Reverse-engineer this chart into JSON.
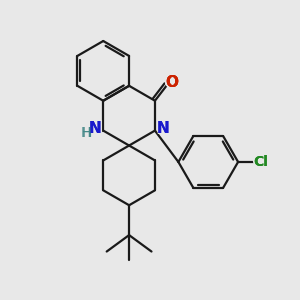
{
  "background_color": "#e8e8e8",
  "line_color": "#1a1a1a",
  "N_color": "#1a1acc",
  "O_color": "#cc2200",
  "Cl_color": "#228822",
  "H_color": "#448888",
  "figsize": [
    3.0,
    3.0
  ],
  "dpi": 100,
  "lw": 1.6,
  "BL": 1.0,
  "xlim": [
    0,
    10
  ],
  "ylim": [
    0,
    10
  ]
}
